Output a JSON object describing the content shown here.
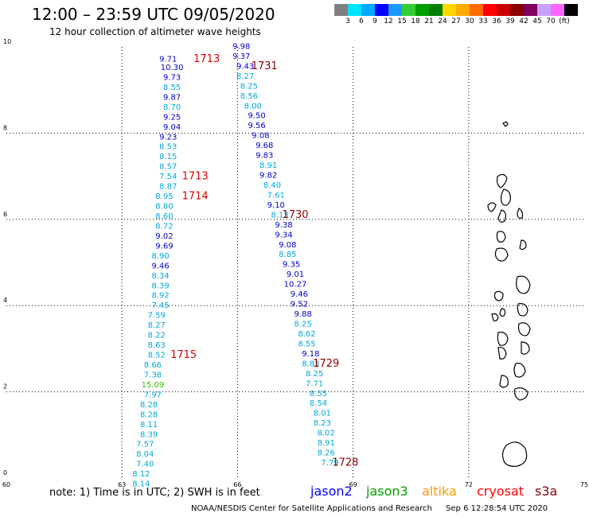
{
  "header": {
    "title": "12:00 – 23:59 UTC 09/05/2020",
    "subtitle": "12 hour collection of altimeter wave heights"
  },
  "legend": {
    "colors": [
      "#7f7f7f",
      "#00e5ff",
      "#00aaff",
      "#0000ff",
      "#1b9aff",
      "#33cc33",
      "#00a000",
      "#008000",
      "#ffd700",
      "#ffaa00",
      "#ff6a00",
      "#ff0000",
      "#cc0000",
      "#8b0000",
      "#800060",
      "#c8a0ff",
      "#ff66ff",
      "#000000"
    ],
    "labels": [
      "3",
      "6",
      "9",
      "12",
      "15",
      "18",
      "21",
      "24",
      "27",
      "30",
      "33",
      "36",
      "39",
      "42",
      "45",
      "70",
      "(ft)"
    ]
  },
  "axes": {
    "x_ticks": [
      "60",
      "63",
      "66",
      "69",
      "72",
      "75"
    ],
    "y_ticks": [
      "0",
      "2",
      "4",
      "6",
      "8",
      "10"
    ]
  },
  "chart_data": {
    "type": "scatter",
    "xlim": [
      60,
      75
    ],
    "ylim": [
      0,
      10
    ],
    "units": "ft",
    "passes": [
      {
        "satellite": "jason2",
        "points": [
          [
            64.2,
            9.71,
            "9.71",
            "#0000cc"
          ],
          [
            64.3,
            9.52,
            "10.30",
            "#0000cc"
          ],
          [
            64.3,
            9.29,
            "9.73",
            "#0000cc"
          ],
          [
            64.3,
            9.06,
            "8.55",
            "#00a8d8"
          ],
          [
            64.3,
            8.83,
            "9.87",
            "#0000cc"
          ],
          [
            64.3,
            8.6,
            "8.70",
            "#00a8d8"
          ],
          [
            64.3,
            8.37,
            "9.25",
            "#0000cc"
          ],
          [
            64.3,
            8.14,
            "9.04",
            "#0000cc"
          ],
          [
            64.2,
            7.91,
            "9.23",
            "#0000cc"
          ],
          [
            64.2,
            7.68,
            "8.53",
            "#00a8d8"
          ],
          [
            64.2,
            7.45,
            "8.15",
            "#00a8d8"
          ],
          [
            64.2,
            7.22,
            "8.57",
            "#00a8d8"
          ],
          [
            64.2,
            6.99,
            "7.54",
            "#00a8d8"
          ],
          [
            64.2,
            6.76,
            "8.87",
            "#00a8d8"
          ],
          [
            64.1,
            6.53,
            "8.95",
            "#00a8d8"
          ],
          [
            64.1,
            6.3,
            "8.80",
            "#00a8d8"
          ],
          [
            64.1,
            6.07,
            "8.60",
            "#00a8d8"
          ],
          [
            64.1,
            5.84,
            "8.72",
            "#00a8d8"
          ],
          [
            64.1,
            5.61,
            "9.02",
            "#0000cc"
          ],
          [
            64.1,
            5.38,
            "9.69",
            "#0000cc"
          ],
          [
            64.0,
            5.15,
            "8.90",
            "#00a8d8"
          ],
          [
            64.0,
            4.92,
            "9.46",
            "#0000cc"
          ],
          [
            64.0,
            4.69,
            "8.34",
            "#00a8d8"
          ],
          [
            64.0,
            4.46,
            "8.39",
            "#00a8d8"
          ],
          [
            64.0,
            4.23,
            "8.92",
            "#00a8d8"
          ],
          [
            64.0,
            4.0,
            "7.45",
            "#00a8d8"
          ],
          [
            63.9,
            3.77,
            "7.59",
            "#00a8d8"
          ],
          [
            63.9,
            3.54,
            "8.27",
            "#00a8d8"
          ],
          [
            63.9,
            3.31,
            "8.22",
            "#00a8d8"
          ],
          [
            63.9,
            3.08,
            "8.63",
            "#00a8d8"
          ],
          [
            63.9,
            2.85,
            "8.52",
            "#00a8d8"
          ],
          [
            63.8,
            2.62,
            "8.66",
            "#00a8d8"
          ],
          [
            63.8,
            2.39,
            "7.38",
            "#00a8d8"
          ],
          [
            63.8,
            2.16,
            "15.09",
            "#33bb00"
          ],
          [
            63.8,
            1.93,
            "7.97",
            "#00a8d8"
          ],
          [
            63.7,
            1.7,
            "8.28",
            "#00a8d8"
          ],
          [
            63.7,
            1.47,
            "8.28",
            "#00a8d8"
          ],
          [
            63.7,
            1.24,
            "8.11",
            "#00a8d8"
          ],
          [
            63.7,
            1.01,
            "8.39",
            "#00a8d8"
          ],
          [
            63.6,
            0.78,
            "7.57",
            "#00a8d8"
          ],
          [
            63.6,
            0.55,
            "8.04",
            "#00a8d8"
          ],
          [
            63.6,
            0.32,
            "7.40",
            "#00a8d8"
          ],
          [
            63.5,
            0.09,
            "8.12",
            "#00a8d8"
          ],
          [
            63.5,
            -0.14,
            "8.14",
            "#00a8d8"
          ]
        ],
        "time_labels": [
          [
            65.2,
            9.71,
            "1713",
            "#dd0000"
          ],
          [
            64.9,
            6.99,
            "1713",
            "#dd0000"
          ],
          [
            64.9,
            6.53,
            "1714",
            "#dd0000"
          ],
          [
            64.6,
            2.85,
            "1715",
            "#dd0000"
          ]
        ]
      },
      {
        "satellite": "jason3",
        "points": [
          [
            66.1,
            10.01,
            "9.98",
            "#0000cc"
          ],
          [
            66.1,
            9.78,
            "9.37",
            "#0000cc"
          ],
          [
            66.2,
            9.55,
            "9.43",
            "#0000cc"
          ],
          [
            66.2,
            9.32,
            "8.27",
            "#00a8d8"
          ],
          [
            66.3,
            9.09,
            "8.25",
            "#00a8d8"
          ],
          [
            66.3,
            8.86,
            "8.56",
            "#00a8d8"
          ],
          [
            66.4,
            8.63,
            "8.00",
            "#00a8d8"
          ],
          [
            66.5,
            8.4,
            "9.50",
            "#0000cc"
          ],
          [
            66.5,
            8.17,
            "9.56",
            "#0000cc"
          ],
          [
            66.6,
            7.94,
            "9.08",
            "#0000cc"
          ],
          [
            66.7,
            7.71,
            "9.68",
            "#0000cc"
          ],
          [
            66.7,
            7.48,
            "9.83",
            "#0000cc"
          ],
          [
            66.8,
            7.25,
            "8.91",
            "#00a8d8"
          ],
          [
            66.8,
            7.02,
            "9.82",
            "#0000cc"
          ],
          [
            66.9,
            6.79,
            "8.40",
            "#00a8d8"
          ],
          [
            67.0,
            6.56,
            "7.61",
            "#00a8d8"
          ],
          [
            67.0,
            6.33,
            "9.10",
            "#0000cc"
          ],
          [
            67.1,
            6.1,
            "8.13",
            "#00a8d8"
          ],
          [
            67.2,
            5.87,
            "9.38",
            "#0000cc"
          ],
          [
            67.2,
            5.64,
            "9.34",
            "#0000cc"
          ],
          [
            67.3,
            5.41,
            "9.08",
            "#0000cc"
          ],
          [
            67.3,
            5.18,
            "8.85",
            "#00a8d8"
          ],
          [
            67.4,
            4.95,
            "9.35",
            "#0000cc"
          ],
          [
            67.5,
            4.72,
            "9.01",
            "#0000cc"
          ],
          [
            67.5,
            4.49,
            "10.27",
            "#0000cc"
          ],
          [
            67.6,
            4.26,
            "9.46",
            "#0000cc"
          ],
          [
            67.6,
            4.03,
            "9.52",
            "#0000cc"
          ],
          [
            67.7,
            3.8,
            "9.88",
            "#0000cc"
          ],
          [
            67.7,
            3.57,
            "8.25",
            "#00a8d8"
          ],
          [
            67.8,
            3.34,
            "8.62",
            "#00a8d8"
          ],
          [
            67.8,
            3.11,
            "8.55",
            "#00a8d8"
          ],
          [
            67.9,
            2.88,
            "9.18",
            "#0000cc"
          ],
          [
            67.9,
            2.65,
            "8.83",
            "#00a8d8"
          ],
          [
            68.0,
            2.42,
            "8.25",
            "#00a8d8"
          ],
          [
            68.0,
            2.19,
            "7.71",
            "#00a8d8"
          ],
          [
            68.1,
            1.96,
            "8.55",
            "#00a8d8"
          ],
          [
            68.1,
            1.73,
            "8.54",
            "#00a8d8"
          ],
          [
            68.2,
            1.5,
            "8.01",
            "#00a8d8"
          ],
          [
            68.2,
            1.27,
            "8.23",
            "#00a8d8"
          ],
          [
            68.3,
            1.04,
            "8.02",
            "#00a8d8"
          ],
          [
            68.3,
            0.81,
            "8.91",
            "#00a8d8"
          ],
          [
            68.3,
            0.58,
            "8.26",
            "#00a8d8"
          ],
          [
            68.4,
            0.35,
            "7.79",
            "#00a8d8"
          ]
        ],
        "time_labels": [
          [
            66.7,
            9.55,
            "1731",
            "#8b0000"
          ],
          [
            67.5,
            6.1,
            "1730",
            "#8b0000"
          ],
          [
            68.3,
            2.65,
            "1729",
            "#8b0000"
          ],
          [
            68.8,
            0.35,
            "1728",
            "#8b0000"
          ]
        ]
      }
    ]
  },
  "satellites": [
    {
      "name": "jason2",
      "color": "#0000ff"
    },
    {
      "name": "jason3",
      "color": "#00a000"
    },
    {
      "name": "altika",
      "color": "#ff9900"
    },
    {
      "name": "cryosat",
      "color": "#ff0000"
    },
    {
      "name": "s3a",
      "color": "#8b0000"
    }
  ],
  "note": "note:  1) Time is in UTC; 2) SWH is in feet",
  "footer": {
    "credit": "NOAA/NESDIS Center for Satellite Applications and Research",
    "timestamp": "Sep  6 12:28:54 UTC 2020"
  }
}
